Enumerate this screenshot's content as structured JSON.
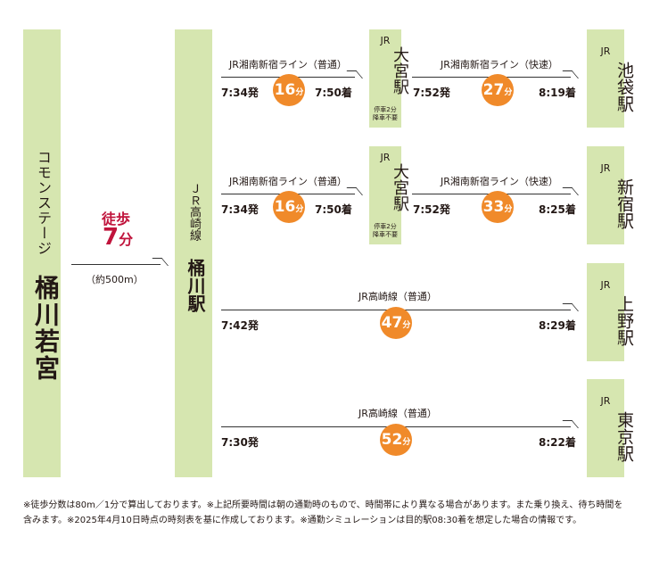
{
  "origin": {
    "name_top": "コモンステージ",
    "name_main": "桶川若宮"
  },
  "walk": {
    "label": "徒歩",
    "minutes": "7",
    "unit": "分",
    "distance": "（約500m）"
  },
  "okegawa": {
    "line": "ＪＲ高崎線",
    "name": "桶川駅"
  },
  "omiya": {
    "jr": "JR",
    "name": "大宮駅",
    "note1": "停車2分",
    "note2": "降車不要"
  },
  "routes": [
    {
      "leg1": {
        "line": "JR湘南新宿ライン（普通）",
        "dep": "7:34発",
        "mins": "16",
        "arr": "7:50着"
      },
      "leg2": {
        "line": "JR湘南新宿ライン（快速）",
        "dep": "7:52発",
        "mins": "27",
        "arr": "8:19着"
      },
      "dest": {
        "jr": "JR",
        "name": "池袋駅"
      }
    },
    {
      "leg1": {
        "line": "JR湘南新宿ライン（普通）",
        "dep": "7:34発",
        "mins": "16",
        "arr": "7:50着"
      },
      "leg2": {
        "line": "JR湘南新宿ライン（快速）",
        "dep": "7:52発",
        "mins": "33",
        "arr": "8:25着"
      },
      "dest": {
        "jr": "JR",
        "name": "新宿駅"
      }
    },
    {
      "leg": {
        "line": "JR高崎線（普通）",
        "dep": "7:42発",
        "mins": "47",
        "arr": "8:29着"
      },
      "dest": {
        "jr": "JR",
        "name": "上野駅"
      }
    },
    {
      "leg": {
        "line": "JR高崎線（普通）",
        "dep": "7:30発",
        "mins": "52",
        "arr": "8:22着"
      },
      "dest": {
        "jr": "JR",
        "name": "東京駅"
      }
    }
  ],
  "minute_unit": "分",
  "footnote": "※徒歩分数は80m／1分で算出しております。※上記所要時間は朝の通勤時のもので、時間帯により異なる場合があります。また乗り換え、待ち時間を含みます。※2025年4月10日時点の時刻表を基に作成しております。※通勤シミュレーションは目的駅08:30着を想定した場合の情報です。",
  "colors": {
    "station_bg": "#d6e6b0",
    "badge": "#f08a2a",
    "walk_accent": "#c0143c"
  }
}
